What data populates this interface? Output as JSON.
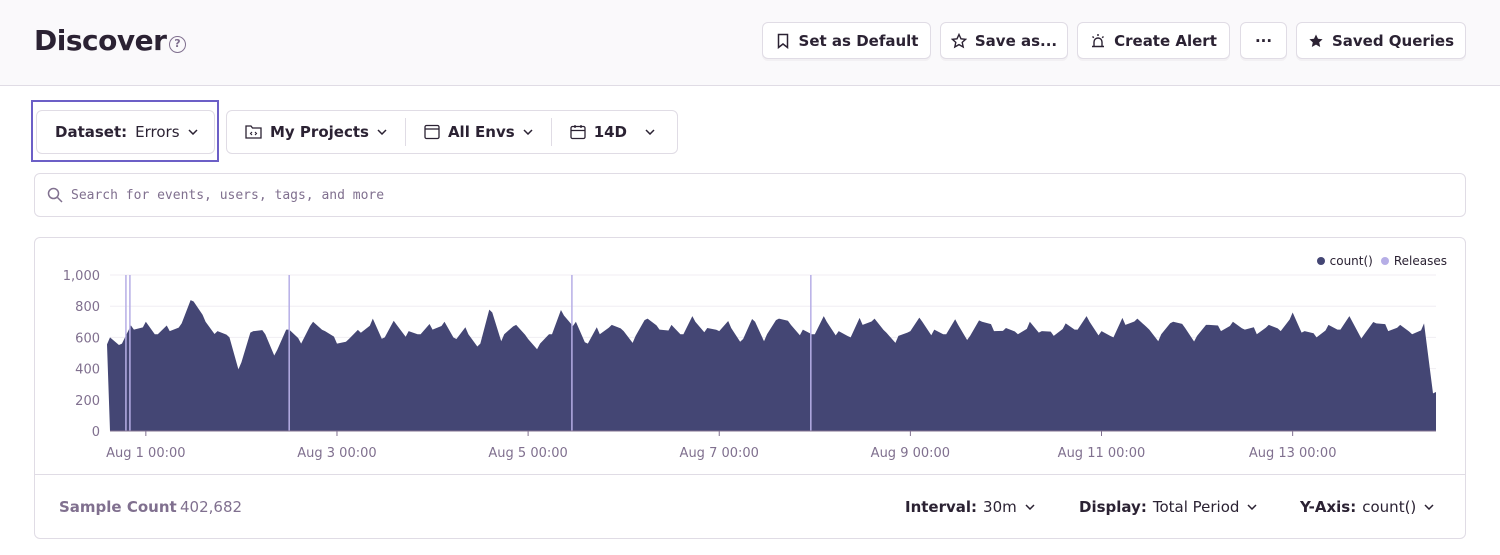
{
  "header": {
    "title": "Discover",
    "help_icon": "question-circle-icon",
    "buttons": [
      {
        "label": "Set as Default",
        "icon": "bookmark-icon"
      },
      {
        "label": "Save as...",
        "icon": "star-outline-icon"
      },
      {
        "label": "Create Alert",
        "icon": "siren-icon"
      },
      {
        "label": "···",
        "icon": "ellipsis-icon"
      },
      {
        "label": "Saved Queries",
        "icon": "star-filled-icon"
      }
    ]
  },
  "filters": {
    "dataset_label": "Dataset:",
    "dataset_value": "Errors",
    "projects": "My Projects",
    "envs": "All Envs",
    "period": "14D"
  },
  "search": {
    "placeholder": "Search for events, users, tags, and more",
    "value": ""
  },
  "colors": {
    "accent": "#6c5fc7",
    "series": "#444674",
    "releases": "#b6aee6"
  },
  "chart_data": {
    "type": "area",
    "legend": [
      "count()",
      "Releases"
    ],
    "legend_position": "top-right",
    "ylim": [
      0,
      1000
    ],
    "yticks": [
      "0",
      "200",
      "400",
      "600",
      "800",
      "1,000"
    ],
    "xticks": [
      "Aug 1 00:00",
      "Aug 3 00:00",
      "Aug 5 00:00",
      "Aug 7 00:00",
      "Aug 9 00:00",
      "Aug 11 00:00",
      "Aug 13 00:00"
    ],
    "x_range": [
      "Jul 31 15:00",
      "Aug 14 12:00"
    ],
    "grid": "horizontal",
    "series": [
      {
        "name": "count()",
        "values": [
          600,
          560,
          650,
          700,
          620,
          640,
          690,
          830,
          700,
          640,
          600,
          440,
          640,
          620,
          520,
          650,
          560,
          700,
          640,
          560,
          590,
          630,
          720,
          600,
          680,
          640,
          620,
          650,
          700,
          590,
          620,
          560,
          760,
          620,
          680,
          590,
          560,
          620,
          740,
          700,
          560,
          620,
          680,
          640,
          610,
          720,
          650,
          680,
          620,
          700,
          660,
          640,
          660,
          590,
          700,
          620,
          720,
          680,
          650,
          620,
          700,
          640,
          600,
          680,
          720,
          630,
          610,
          640,
          700,
          650,
          620,
          680,
          610,
          700,
          640,
          660,
          620,
          700,
          640,
          610,
          690,
          650,
          700,
          640,
          600,
          680,
          720,
          650,
          620,
          700,
          660,
          610,
          680,
          640,
          700,
          650,
          620,
          680,
          640,
          760,
          640,
          600,
          680,
          650,
          700,
          620,
          690,
          640,
          680,
          620,
          690,
          250
        ]
      }
    ],
    "releases": [
      "Jul 31 19:00",
      "Jul 31 20:00",
      "Aug 2 12:00",
      "Aug 5 11:00",
      "Aug 7 23:00"
    ]
  },
  "footer": {
    "sample_label": "Sample Count",
    "sample_value": "402,682",
    "interval_label": "Interval:",
    "interval_value": "30m",
    "display_label": "Display:",
    "display_value": "Total Period",
    "yaxis_label": "Y-Axis:",
    "yaxis_value": "count()"
  }
}
